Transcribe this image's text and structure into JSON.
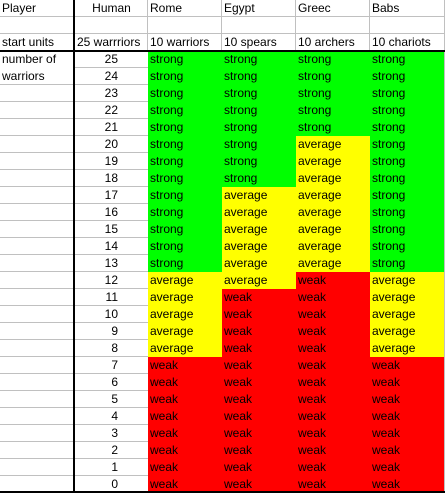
{
  "header": {
    "player_label": "Player",
    "start_units_label": "start units",
    "columns": [
      {
        "name": "Human",
        "start": "25 warrriors"
      },
      {
        "name": "Rome",
        "start": "10 warriors"
      },
      {
        "name": "Egypt",
        "start": "10 spears"
      },
      {
        "name": "Greec",
        "start": "10 archers"
      },
      {
        "name": "Babs",
        "start": "10 chariots"
      }
    ]
  },
  "row_label": [
    "number of",
    "warriors"
  ],
  "legend_colors": {
    "strong": "#00ff00",
    "average": "#ffff00",
    "weak": "#ff0000"
  },
  "rows": [
    {
      "warriors": "25",
      "rome": "strong",
      "egypt": "strong",
      "greec": "strong",
      "babs": "strong"
    },
    {
      "warriors": "24",
      "rome": "strong",
      "egypt": "strong",
      "greec": "strong",
      "babs": "strong"
    },
    {
      "warriors": "23",
      "rome": "strong",
      "egypt": "strong",
      "greec": "strong",
      "babs": "strong"
    },
    {
      "warriors": "22",
      "rome": "strong",
      "egypt": "strong",
      "greec": "strong",
      "babs": "strong"
    },
    {
      "warriors": "21",
      "rome": "strong",
      "egypt": "strong",
      "greec": "strong",
      "babs": "strong"
    },
    {
      "warriors": "20",
      "rome": "strong",
      "egypt": "strong",
      "greec": "average",
      "babs": "strong"
    },
    {
      "warriors": "19",
      "rome": "strong",
      "egypt": "strong",
      "greec": "average",
      "babs": "strong"
    },
    {
      "warriors": "18",
      "rome": "strong",
      "egypt": "strong",
      "greec": "average",
      "babs": "strong"
    },
    {
      "warriors": "17",
      "rome": "strong",
      "egypt": "average",
      "greec": "average",
      "babs": "strong"
    },
    {
      "warriors": "16",
      "rome": "strong",
      "egypt": "average",
      "greec": "average",
      "babs": "strong"
    },
    {
      "warriors": "15",
      "rome": "strong",
      "egypt": "average",
      "greec": "average",
      "babs": "strong"
    },
    {
      "warriors": "14",
      "rome": "strong",
      "egypt": "average",
      "greec": "average",
      "babs": "strong"
    },
    {
      "warriors": "13",
      "rome": "strong",
      "egypt": "average",
      "greec": "average",
      "babs": "strong"
    },
    {
      "warriors": "12",
      "rome": "average",
      "egypt": "average",
      "greec": "weak",
      "babs": "average"
    },
    {
      "warriors": "11",
      "rome": "average",
      "egypt": "weak",
      "greec": "weak",
      "babs": "average"
    },
    {
      "warriors": "10",
      "rome": "average",
      "egypt": "weak",
      "greec": "weak",
      "babs": "average"
    },
    {
      "warriors": "9",
      "rome": "average",
      "egypt": "weak",
      "greec": "weak",
      "babs": "average"
    },
    {
      "warriors": "8",
      "rome": "average",
      "egypt": "weak",
      "greec": "weak",
      "babs": "average"
    },
    {
      "warriors": "7",
      "rome": "weak",
      "egypt": "weak",
      "greec": "weak",
      "babs": "weak"
    },
    {
      "warriors": "6",
      "rome": "weak",
      "egypt": "weak",
      "greec": "weak",
      "babs": "weak"
    },
    {
      "warriors": "5",
      "rome": "weak",
      "egypt": "weak",
      "greec": "weak",
      "babs": "weak"
    },
    {
      "warriors": "4",
      "rome": "weak",
      "egypt": "weak",
      "greec": "weak",
      "babs": "weak"
    },
    {
      "warriors": "3",
      "rome": "weak",
      "egypt": "weak",
      "greec": "weak",
      "babs": "weak"
    },
    {
      "warriors": "2",
      "rome": "weak",
      "egypt": "weak",
      "greec": "weak",
      "babs": "weak"
    },
    {
      "warriors": "1",
      "rome": "weak",
      "egypt": "weak",
      "greec": "weak",
      "babs": "weak"
    },
    {
      "warriors": "0",
      "rome": "weak",
      "egypt": "weak",
      "greec": "weak",
      "babs": "weak"
    }
  ]
}
